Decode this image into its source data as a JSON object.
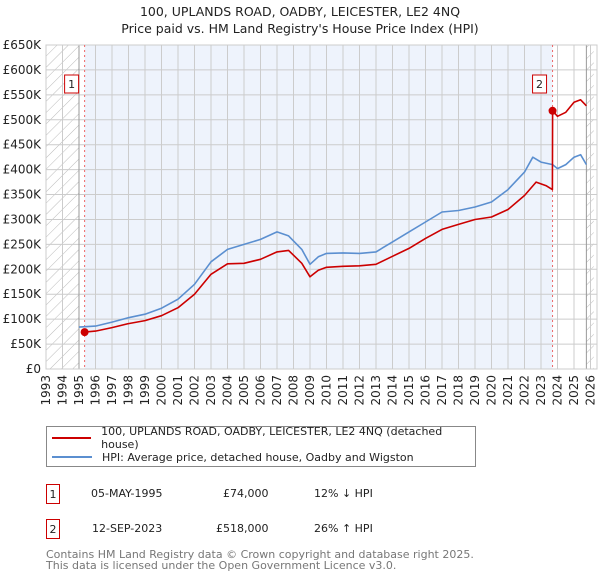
{
  "title": "100, UPLANDS ROAD, OADBY, LEICESTER, LE2 4NQ",
  "subtitle": "Price paid vs. HM Land Registry's House Price Index (HPI)",
  "colors": {
    "property": "#cc0000",
    "hpi": "#5b8fd0",
    "shade": "#eef3fc",
    "grid": "#cccccc"
  },
  "legend": [
    {
      "label": "100, UPLANDS ROAD, OADBY, LEICESTER, LE2 4NQ (detached house)",
      "color": "#cc0000"
    },
    {
      "label": "HPI: Average price, detached house, Oadby and Wigston",
      "color": "#5b8fd0"
    }
  ],
  "sales": [
    {
      "num": "1",
      "date": "05-MAY-1995",
      "price": "£74,000",
      "hpi_diff": "12% ↓ HPI"
    },
    {
      "num": "2",
      "date": "12-SEP-2023",
      "price": "£518,000",
      "hpi_diff": "26% ↑ HPI"
    }
  ],
  "footer": [
    "Contains HM Land Registry data © Crown copyright and database right 2025.",
    "This data is licensed under the Open Government Licence v3.0."
  ],
  "chart_data": {
    "type": "line",
    "xlim": [
      1993,
      2026
    ],
    "ylim": [
      0,
      650000
    ],
    "x_ticks": [
      "1993",
      "1994",
      "1995",
      "1996",
      "1997",
      "1998",
      "1999",
      "2000",
      "2001",
      "2002",
      "2003",
      "2004",
      "2005",
      "2006",
      "2007",
      "2008",
      "2009",
      "2010",
      "2011",
      "2012",
      "2013",
      "2014",
      "2015",
      "2016",
      "2017",
      "2018",
      "2019",
      "2020",
      "2021",
      "2022",
      "2023",
      "2024",
      "2025",
      "2026"
    ],
    "y_ticks": [
      {
        "value": 0,
        "label": "£0"
      },
      {
        "value": 50000,
        "label": "£50K"
      },
      {
        "value": 100000,
        "label": "£100K"
      },
      {
        "value": 150000,
        "label": "£150K"
      },
      {
        "value": 200000,
        "label": "£200K"
      },
      {
        "value": 250000,
        "label": "£250K"
      },
      {
        "value": 300000,
        "label": "£300K"
      },
      {
        "value": 350000,
        "label": "£350K"
      },
      {
        "value": 400000,
        "label": "£400K"
      },
      {
        "value": 450000,
        "label": "£450K"
      },
      {
        "value": 500000,
        "label": "£500K"
      },
      {
        "value": 550000,
        "label": "£550K"
      },
      {
        "value": 600000,
        "label": "£600K"
      },
      {
        "value": 650000,
        "label": "£650K"
      }
    ],
    "series": [
      {
        "name": "HPI: Average price, detached house, Oadby and Wigston",
        "x": [
          1995,
          1996,
          1997,
          1998,
          1999,
          2000,
          2001,
          2002,
          2003,
          2004,
          2005,
          2006,
          2007,
          2007.7,
          2008.5,
          2009,
          2009.5,
          2010,
          2011,
          2012,
          2013,
          2014,
          2015,
          2016,
          2017,
          2018,
          2019,
          2020,
          2021,
          2022,
          2022.5,
          2023,
          2023.7,
          2024,
          2024.5,
          2025,
          2025.4,
          2025.75
        ],
        "y": [
          84000,
          86000,
          94000,
          103000,
          110000,
          122000,
          140000,
          170000,
          215000,
          240000,
          250000,
          260000,
          275000,
          267000,
          240000,
          210000,
          225000,
          232000,
          233000,
          232000,
          235000,
          255000,
          275000,
          295000,
          315000,
          318000,
          325000,
          335000,
          360000,
          395000,
          425000,
          415000,
          410000,
          402000,
          410000,
          425000,
          430000,
          410000
        ]
      },
      {
        "name": "100, UPLANDS ROAD, OADBY, LEICESTER, LE2 4NQ (detached house)",
        "x": [
          1995.34,
          1996,
          1997,
          1998,
          1999,
          2000,
          2001,
          2002,
          2003,
          2004,
          2005,
          2006,
          2007,
          2007.7,
          2008.5,
          2009,
          2009.5,
          2010,
          2011,
          2012,
          2013,
          2014,
          2015,
          2016,
          2017,
          2018,
          2019,
          2020,
          2021,
          2022,
          2022.7,
          2023.3,
          2023.69,
          2023.7,
          2024,
          2024.5,
          2025,
          2025.4,
          2025.75
        ],
        "y": [
          74000,
          76000,
          83000,
          91000,
          97000,
          107000,
          123000,
          150000,
          190000,
          211000,
          212000,
          220000,
          235000,
          238000,
          212000,
          185000,
          198000,
          204000,
          206000,
          207000,
          210000,
          226000,
          242000,
          262000,
          280000,
          290000,
          300000,
          305000,
          320000,
          348000,
          375000,
          368000,
          360000,
          518000,
          507000,
          515000,
          535000,
          540000,
          528000
        ]
      }
    ],
    "markers": [
      {
        "label": "1",
        "x": 1995.34,
        "y": 74000
      },
      {
        "label": "2",
        "x": 2023.7,
        "y": 518000
      }
    ],
    "shaded_range": [
      1995.34,
      2023.7
    ],
    "hatched_ranges": [
      [
        1993,
        1995
      ],
      [
        2025.75,
        2026.2
      ]
    ]
  }
}
